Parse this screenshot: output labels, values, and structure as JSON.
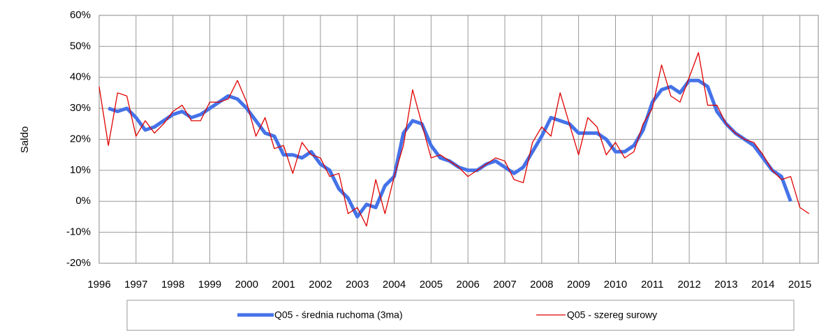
{
  "chart_data": {
    "type": "line",
    "ylabel": "Saldo",
    "x": [
      1996,
      1996.25,
      1996.5,
      1996.75,
      1997,
      1997.25,
      1997.5,
      1997.75,
      1998,
      1998.25,
      1998.5,
      1998.75,
      1999,
      1999.25,
      1999.5,
      1999.75,
      2000,
      2000.25,
      2000.5,
      2000.75,
      2001,
      2001.25,
      2001.5,
      2001.75,
      2002,
      2002.25,
      2002.5,
      2002.75,
      2003,
      2003.25,
      2003.5,
      2003.75,
      2004,
      2004.25,
      2004.5,
      2004.75,
      2005,
      2005.25,
      2005.5,
      2005.75,
      2006,
      2006.25,
      2006.5,
      2006.75,
      2007,
      2007.25,
      2007.5,
      2007.75,
      2008,
      2008.25,
      2008.5,
      2008.75,
      2009,
      2009.25,
      2009.5,
      2009.75,
      2010,
      2010.25,
      2010.5,
      2010.75,
      2011,
      2011.25,
      2011.5,
      2011.75,
      2012,
      2012.25,
      2012.5,
      2012.75,
      2013,
      2013.25,
      2013.5,
      2013.75,
      2014,
      2014.25,
      2014.5,
      2014.75,
      2015,
      2015.25
    ],
    "series": [
      {
        "name": "Q05 - średnia ruchoma (3ma)",
        "color": "#4472e8",
        "width": 5,
        "values": [
          null,
          30,
          29,
          30,
          27,
          23,
          24,
          26,
          28,
          29,
          27,
          28,
          30,
          32,
          34,
          33,
          30,
          26,
          22,
          21,
          15,
          15,
          14,
          16,
          12,
          10,
          4,
          1,
          -5,
          -1,
          -2,
          5,
          8,
          22,
          26,
          25,
          18,
          14,
          13,
          11,
          10,
          10,
          12,
          13,
          11,
          9,
          11,
          16,
          21,
          27,
          26,
          25,
          22,
          22,
          22,
          20,
          16,
          16,
          18,
          23,
          32,
          36,
          37,
          35,
          39,
          39,
          37,
          29,
          25,
          22,
          20,
          18,
          14,
          10,
          8,
          0,
          null,
          null
        ]
      },
      {
        "name": "Q05 - szereg surowy",
        "color": "#e00000",
        "width": 1.3,
        "values": [
          37,
          18,
          35,
          34,
          21,
          26,
          22,
          25,
          29,
          31,
          26,
          26,
          32,
          32,
          33,
          39,
          32,
          21,
          27,
          17,
          18,
          9,
          19,
          15,
          14,
          8,
          9,
          -4,
          -2,
          -8,
          7,
          -4,
          8,
          18,
          36,
          25,
          14,
          15,
          13,
          11,
          8,
          10,
          12,
          14,
          13,
          7,
          6,
          19,
          24,
          21,
          35,
          25,
          15,
          27,
          24,
          15,
          19,
          14,
          16,
          25,
          30,
          44,
          34,
          32,
          40,
          48,
          31,
          31,
          25,
          22,
          20,
          19,
          15,
          10,
          7,
          8,
          -2,
          -4
        ]
      }
    ],
    "xlim": [
      1996,
      2015.5
    ],
    "xticks": [
      1996,
      1997,
      1998,
      1999,
      2000,
      2001,
      2002,
      2003,
      2004,
      2005,
      2006,
      2007,
      2008,
      2009,
      2010,
      2011,
      2012,
      2013,
      2014,
      2015
    ],
    "ylim": [
      -20,
      60
    ],
    "yticks": [
      {
        "value": -20,
        "label": "-20%"
      },
      {
        "value": -10,
        "label": "-10%"
      },
      {
        "value": 0,
        "label": "0%"
      },
      {
        "value": 10,
        "label": "10%"
      },
      {
        "value": 20,
        "label": "20%"
      },
      {
        "value": 30,
        "label": "30%"
      },
      {
        "value": 40,
        "label": "40%"
      },
      {
        "value": 50,
        "label": "50%"
      },
      {
        "value": 60,
        "label": "60%"
      }
    ],
    "grid": true,
    "legend": "bottom"
  }
}
